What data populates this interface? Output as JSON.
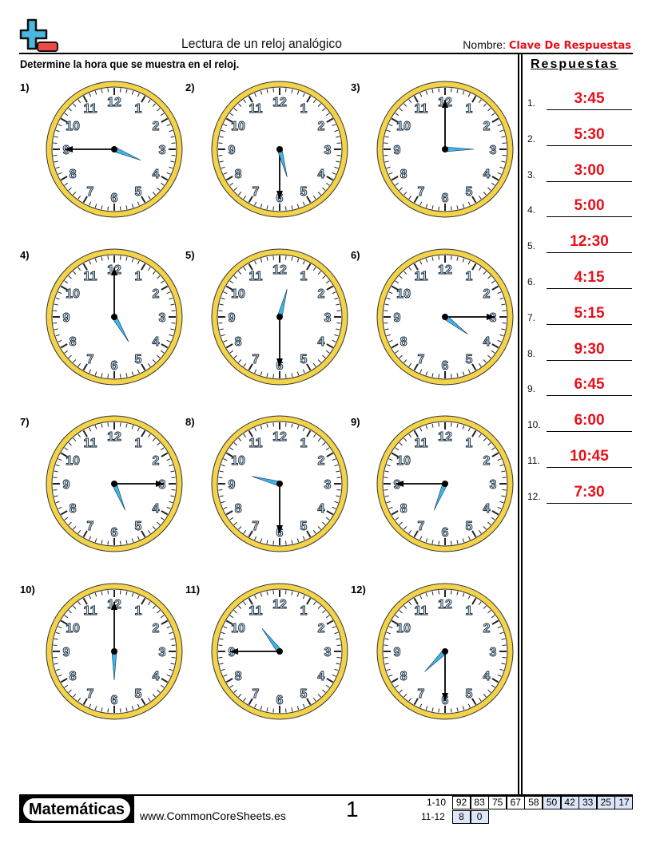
{
  "header": {
    "title": "Lectura de un reloj analógico",
    "name_label": "Nombre:",
    "name_value": "Clave De Respuestas"
  },
  "instructions": "Determine la hora que se muestra en el reloj.",
  "answers_title": "Respuestas",
  "clock_colors": {
    "rim": "#f2d34a",
    "hour_hand": "#3fb6e8",
    "minute_hand": "#000000"
  },
  "problems": [
    {
      "label": "1)",
      "num": "1.",
      "answer": "3:45",
      "h": 3,
      "m": 45
    },
    {
      "label": "2)",
      "num": "2.",
      "answer": "5:30",
      "h": 5,
      "m": 30
    },
    {
      "label": "3)",
      "num": "3.",
      "answer": "3:00",
      "h": 3,
      "m": 0
    },
    {
      "label": "4)",
      "num": "4.",
      "answer": "5:00",
      "h": 5,
      "m": 0
    },
    {
      "label": "5)",
      "num": "5.",
      "answer": "12:30",
      "h": 12,
      "m": 30
    },
    {
      "label": "6)",
      "num": "6.",
      "answer": "4:15",
      "h": 4,
      "m": 15
    },
    {
      "label": "7)",
      "num": "7.",
      "answer": "5:15",
      "h": 5,
      "m": 15
    },
    {
      "label": "8)",
      "num": "8.",
      "answer": "9:30",
      "h": 9,
      "m": 30
    },
    {
      "label": "9)",
      "num": "9.",
      "answer": "6:45",
      "h": 6,
      "m": 45
    },
    {
      "label": "10)",
      "num": "10.",
      "answer": "6:00",
      "h": 6,
      "m": 0
    },
    {
      "label": "11)",
      "num": "11.",
      "answer": "10:45",
      "h": 10,
      "m": 45
    },
    {
      "label": "12)",
      "num": "12.",
      "answer": "7:30",
      "h": 7,
      "m": 30
    }
  ],
  "footer": {
    "brand": "Matemáticas",
    "site": "www.CommonCoreSheets.es",
    "page": "1",
    "score_rows": [
      {
        "label": "1-10",
        "values": [
          "92",
          "83",
          "75",
          "67",
          "58",
          "50",
          "42",
          "33",
          "25",
          "17"
        ]
      },
      {
        "label": "11-12",
        "values": [
          "8",
          "0"
        ]
      }
    ]
  }
}
